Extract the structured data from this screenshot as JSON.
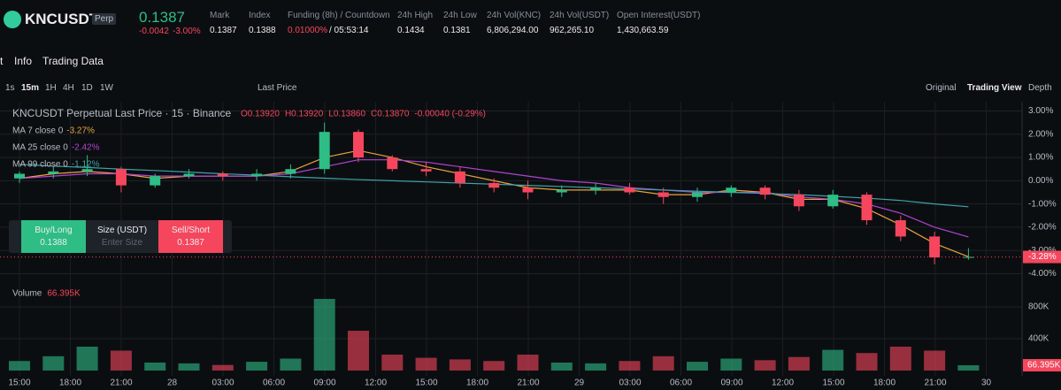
{
  "header": {
    "symbol": "KNCUSDT",
    "badge": "Perp",
    "price": "0.1387",
    "change": "-0.0042",
    "change_pct": "-3.00%",
    "stats": [
      {
        "label": "Mark",
        "value": "0.1387"
      },
      {
        "label": "Index",
        "value": "0.1388"
      },
      {
        "label": "Funding (8h) / Countdown",
        "value": "0.01000%",
        "extra": "/ 05:53:14"
      },
      {
        "label": "24h High",
        "value": "0.1434"
      },
      {
        "label": "24h Low",
        "value": "0.1381"
      },
      {
        "label": "24h Vol(KNC)",
        "value": "6,806,294.00"
      },
      {
        "label": "24h Vol(USDT)",
        "value": "962,265.10"
      },
      {
        "label": "Open Interest(USDT)",
        "value": "1,430,663.59"
      }
    ]
  },
  "tabs": [
    "t",
    "Info",
    "Trading Data"
  ],
  "toolbar": {
    "intervals": [
      "1s",
      "15m",
      "1H",
      "4H",
      "1D",
      "1W"
    ],
    "price_type": "Last Price",
    "views": [
      "Original",
      "Trading View",
      "Depth"
    ]
  },
  "order_panel": {
    "buy": "Buy/Long",
    "buy_price": "0.1388",
    "size": "Size (USDT)",
    "size_placeholder": "Enter Size",
    "sell": "Sell/Short",
    "sell_price": "0.1387"
  },
  "chart_data": {
    "type": "candlestick",
    "title": "KNCUSDT Perpetual Last Price · 15 · Binance",
    "ohlc_labels": [
      "O0.13920",
      "H0.13920",
      "L0.13860",
      "C0.13870",
      "-0.00040 (-0.29%)"
    ],
    "up_color": "#2ebd85",
    "down_color": "#f6465d",
    "open": [
      0.1,
      0.3,
      0.4,
      0.5,
      -0.2,
      0.2,
      0.3,
      0.2,
      0.3,
      0.5,
      2.1,
      1.0,
      0.5,
      0.4,
      -0.1,
      -0.3,
      -0.5,
      -0.4,
      -0.3,
      -0.5,
      -0.7,
      -0.5,
      -0.3,
      -0.6,
      -1.1,
      -0.6,
      -1.7,
      -2.4,
      -3.3
    ],
    "high": [
      0.4,
      0.6,
      1.1,
      0.6,
      0.3,
      0.5,
      0.4,
      0.5,
      0.7,
      2.5,
      2.2,
      1.1,
      0.8,
      0.6,
      0.1,
      0.0,
      -0.2,
      -0.1,
      -0.1,
      -0.3,
      -0.3,
      -0.2,
      -0.2,
      -0.4,
      -0.4,
      -0.5,
      -1.5,
      -2.2,
      -2.9
    ],
    "low": [
      -0.1,
      0.1,
      0.2,
      -0.5,
      -0.3,
      0.1,
      0.0,
      0.0,
      0.1,
      0.3,
      0.8,
      0.4,
      0.2,
      -0.3,
      -0.5,
      -0.8,
      -0.7,
      -0.6,
      -0.6,
      -1.0,
      -0.9,
      -0.7,
      -0.8,
      -1.3,
      -1.2,
      -1.9,
      -2.6,
      -3.6,
      -3.4
    ],
    "close": [
      0.3,
      0.4,
      0.5,
      -0.2,
      0.2,
      0.3,
      0.2,
      0.3,
      0.5,
      2.1,
      1.0,
      0.5,
      0.4,
      -0.1,
      -0.3,
      -0.5,
      -0.4,
      -0.3,
      -0.5,
      -0.7,
      -0.5,
      -0.3,
      -0.6,
      -1.1,
      -0.6,
      -1.7,
      -2.4,
      -3.3,
      -3.28
    ],
    "ma": [
      {
        "name": "MA 7 close 0",
        "legend_value": "-3.27%",
        "color": "#e8a33d",
        "values": [
          0.1,
          0.3,
          0.4,
          0.3,
          0.1,
          0.2,
          0.2,
          0.2,
          0.4,
          1.0,
          1.3,
          1.0,
          0.6,
          0.3,
          0.0,
          -0.3,
          -0.4,
          -0.4,
          -0.4,
          -0.6,
          -0.6,
          -0.4,
          -0.5,
          -0.8,
          -0.8,
          -1.2,
          -1.9,
          -2.7,
          -3.27
        ]
      },
      {
        "name": "MA 25 close 0",
        "legend_value": "-2.42%",
        "color": "#b043d1",
        "values": [
          0.1,
          0.2,
          0.3,
          0.3,
          0.2,
          0.2,
          0.2,
          0.2,
          0.3,
          0.6,
          0.9,
          0.9,
          0.8,
          0.6,
          0.4,
          0.2,
          0.0,
          -0.1,
          -0.3,
          -0.4,
          -0.5,
          -0.5,
          -0.5,
          -0.7,
          -0.8,
          -1.0,
          -1.4,
          -2.0,
          -2.42
        ]
      },
      {
        "name": "MA 99 close 0",
        "legend_value": "-1.12%",
        "color": "#3fa3a8",
        "values": [
          0.7,
          0.63,
          0.57,
          0.5,
          0.44,
          0.37,
          0.3,
          0.24,
          0.17,
          0.11,
          0.05,
          0.0,
          -0.05,
          -0.1,
          -0.15,
          -0.2,
          -0.25,
          -0.3,
          -0.35,
          -0.4,
          -0.45,
          -0.5,
          -0.55,
          -0.6,
          -0.67,
          -0.75,
          -0.85,
          -1.0,
          -1.12
        ]
      }
    ],
    "ylim": [
      -4.4,
      3.4
    ],
    "yticks": [
      {
        "value": 3,
        "label": "3.00%"
      },
      {
        "value": 2,
        "label": "2.00%"
      },
      {
        "value": 1,
        "label": "1.00%"
      },
      {
        "value": 0,
        "label": "0.00%"
      },
      {
        "value": -1,
        "label": "-1.00%"
      },
      {
        "value": -2,
        "label": "-2.00%"
      },
      {
        "value": -3,
        "label": "-3.00%"
      },
      {
        "value": -4,
        "label": "-4.00%"
      }
    ],
    "last_price": {
      "value": -3.28,
      "label": "-3.28%"
    },
    "xticks": [
      "15:00",
      "18:00",
      "21:00",
      "28",
      "03:00",
      "06:00",
      "09:00",
      "12:00",
      "15:00",
      "18:00",
      "21:00",
      "29",
      "03:00",
      "06:00",
      "09:00",
      "12:00",
      "15:00",
      "18:00",
      "21:00",
      "30"
    ],
    "volume": {
      "title": "Volume",
      "current_label": "66.395K",
      "values": [
        120,
        180,
        300,
        250,
        100,
        90,
        70,
        110,
        150,
        900,
        500,
        200,
        160,
        140,
        120,
        200,
        100,
        90,
        120,
        180,
        110,
        150,
        130,
        170,
        260,
        220,
        300,
        250,
        66.395
      ],
      "ylim": [
        0,
        1100
      ],
      "yticks": [
        {
          "value": 800,
          "label": "800K"
        },
        {
          "value": 400,
          "label": "400K"
        }
      ]
    }
  }
}
